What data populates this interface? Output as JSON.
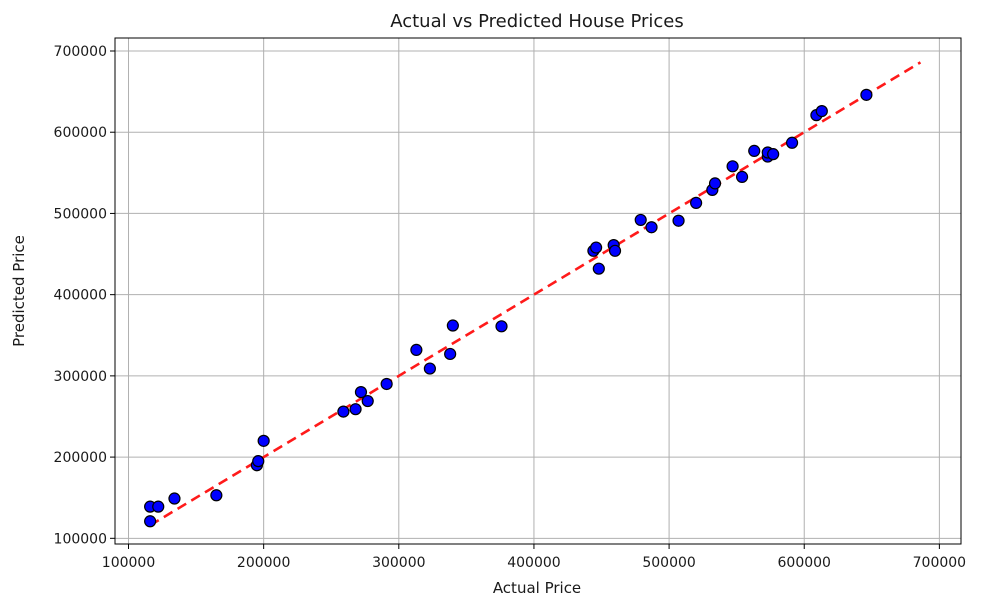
{
  "chart_data": {
    "type": "scatter",
    "title": "Actual vs Predicted House Prices",
    "xlabel": "Actual Price",
    "ylabel": "Predicted Price",
    "xlim": [
      90000,
      716000
    ],
    "ylim": [
      93000,
      716000
    ],
    "xticks": [
      100000,
      200000,
      300000,
      400000,
      500000,
      600000,
      700000
    ],
    "yticks": [
      100000,
      200000,
      300000,
      400000,
      500000,
      600000,
      700000
    ],
    "grid": true,
    "points": [
      {
        "x": 116000,
        "y": 121000
      },
      {
        "x": 116000,
        "y": 139000
      },
      {
        "x": 122000,
        "y": 139000
      },
      {
        "x": 134000,
        "y": 149000
      },
      {
        "x": 165000,
        "y": 153000
      },
      {
        "x": 195000,
        "y": 190000
      },
      {
        "x": 196000,
        "y": 195000
      },
      {
        "x": 200000,
        "y": 220000
      },
      {
        "x": 259000,
        "y": 256000
      },
      {
        "x": 268000,
        "y": 259000
      },
      {
        "x": 272000,
        "y": 280000
      },
      {
        "x": 277000,
        "y": 269000
      },
      {
        "x": 291000,
        "y": 290000
      },
      {
        "x": 313000,
        "y": 332000
      },
      {
        "x": 323000,
        "y": 309000
      },
      {
        "x": 338000,
        "y": 327000
      },
      {
        "x": 340000,
        "y": 362000
      },
      {
        "x": 376000,
        "y": 361000
      },
      {
        "x": 444000,
        "y": 454000
      },
      {
        "x": 446000,
        "y": 458000
      },
      {
        "x": 448000,
        "y": 432000
      },
      {
        "x": 459000,
        "y": 461000
      },
      {
        "x": 460000,
        "y": 454000
      },
      {
        "x": 479000,
        "y": 492000
      },
      {
        "x": 487000,
        "y": 483000
      },
      {
        "x": 507000,
        "y": 491000
      },
      {
        "x": 520000,
        "y": 513000
      },
      {
        "x": 532000,
        "y": 529000
      },
      {
        "x": 534000,
        "y": 537000
      },
      {
        "x": 547000,
        "y": 558000
      },
      {
        "x": 554000,
        "y": 545000
      },
      {
        "x": 563000,
        "y": 577000
      },
      {
        "x": 573000,
        "y": 570000
      },
      {
        "x": 573000,
        "y": 575000
      },
      {
        "x": 577000,
        "y": 573000
      },
      {
        "x": 591000,
        "y": 587000
      },
      {
        "x": 609000,
        "y": 621000
      },
      {
        "x": 613000,
        "y": 626000
      },
      {
        "x": 646000,
        "y": 646000
      }
    ],
    "reference_line": {
      "x": [
        116000,
        686000
      ],
      "y": [
        116000,
        686000
      ],
      "style": "dashed"
    },
    "colors": {
      "point_fill": "#0000ff",
      "point_edge": "#000000",
      "reference_line": "#ff1a1a",
      "grid": "#b0b0b0"
    }
  }
}
